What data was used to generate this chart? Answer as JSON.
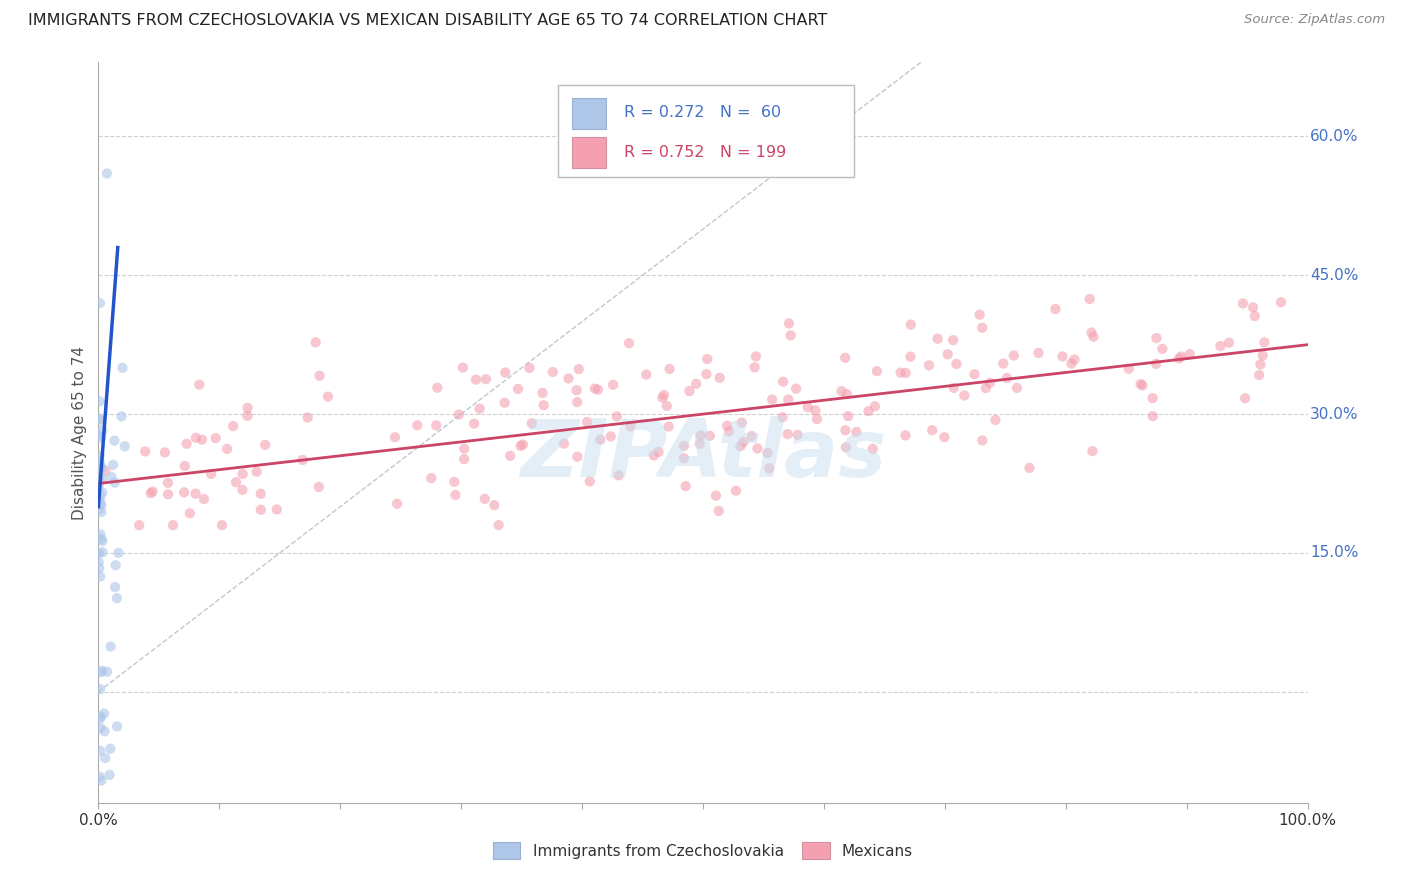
{
  "title": "IMMIGRANTS FROM CZECHOSLOVAKIA VS MEXICAN DISABILITY AGE 65 TO 74 CORRELATION CHART",
  "source": "Source: ZipAtlas.com",
  "ylabel": "Disability Age 65 to 74",
  "xmin": 0.0,
  "xmax": 1.0,
  "ymin": -0.12,
  "ymax": 0.68,
  "yticks": [
    0.0,
    0.15,
    0.3,
    0.45,
    0.6
  ],
  "ytick_labels": [
    "",
    "15.0%",
    "30.0%",
    "45.0%",
    "60.0%"
  ],
  "xtick_positions": [
    0.0,
    0.1,
    0.2,
    0.3,
    0.4,
    0.5,
    0.6,
    0.7,
    0.8,
    0.9,
    1.0
  ],
  "xtick_labels": [
    "0.0%",
    "",
    "",
    "",
    "",
    "",
    "",
    "",
    "",
    "",
    "100.0%"
  ],
  "right_ytick_color": "#4472c4",
  "grid_color": "#d0d0d0",
  "background_color": "#ffffff",
  "legend_color1": "#aec6e8",
  "legend_color2": "#f4a0b0",
  "blue_dot_color": "#aec6e8",
  "pink_dot_color": "#f4a0b0",
  "blue_line_color": "#2255cc",
  "pink_line_color": "#cc4466",
  "dot_alpha": 0.6,
  "dot_size": 55,
  "watermark": "ZIPAtlas",
  "watermark_color": "#c8dff0",
  "czech_line_x0": 0.0,
  "czech_line_y0": 0.2,
  "czech_line_x1": 0.016,
  "czech_line_y1": 0.48,
  "mex_line_x0": 0.0,
  "mex_line_y0": 0.225,
  "mex_line_x1": 1.0,
  "mex_line_y1": 0.375
}
